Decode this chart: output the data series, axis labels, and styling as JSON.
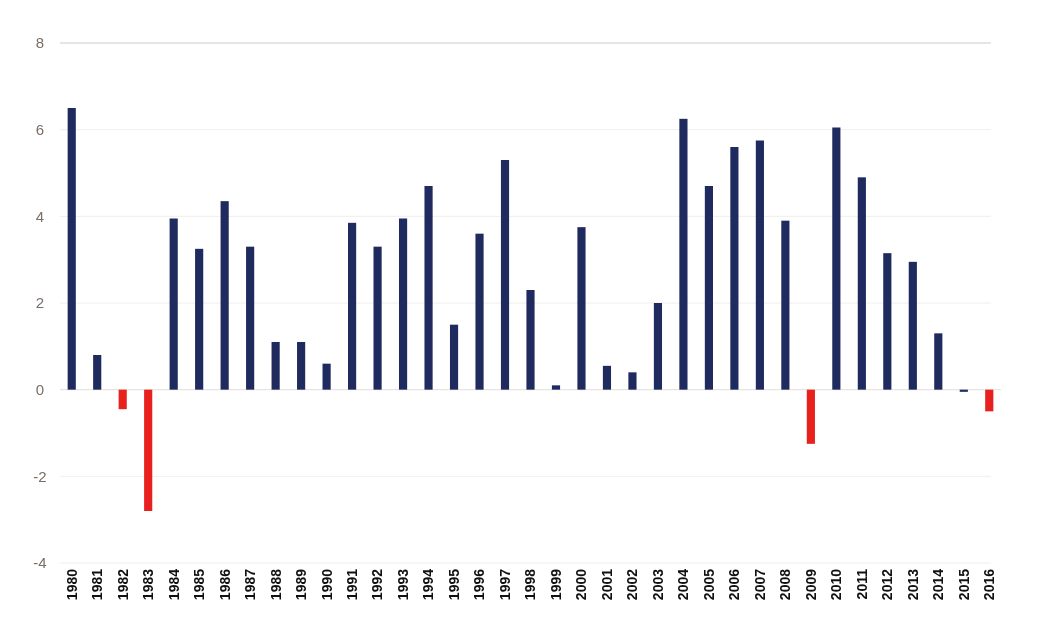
{
  "chart_data": {
    "type": "bar",
    "categories": [
      "1980",
      "1981",
      "1982",
      "1983",
      "1984",
      "1985",
      "1986",
      "1987",
      "1988",
      "1989",
      "1990",
      "1991",
      "1992",
      "1993",
      "1994",
      "1995",
      "1996",
      "1997",
      "1998",
      "1999",
      "2000",
      "2001",
      "2002",
      "2003",
      "2004",
      "2005",
      "2006",
      "2007",
      "2008",
      "2009",
      "2010",
      "2011",
      "2012",
      "2013",
      "2014",
      "2015",
      "2016"
    ],
    "values": [
      6.5,
      0.8,
      -0.45,
      -2.8,
      3.95,
      3.25,
      4.35,
      3.3,
      1.1,
      1.1,
      0.6,
      3.85,
      3.3,
      3.95,
      4.7,
      1.5,
      3.6,
      5.3,
      2.3,
      0.1,
      3.75,
      0.55,
      0.4,
      2.0,
      6.25,
      4.7,
      5.6,
      5.75,
      3.9,
      -1.25,
      6.05,
      4.9,
      3.15,
      2.95,
      1.3,
      -0.05,
      -0.5
    ],
    "colors": [
      "#1f2a5e",
      "#1f2a5e",
      "#e8201e",
      "#e8201e",
      "#1f2a5e",
      "#1f2a5e",
      "#1f2a5e",
      "#1f2a5e",
      "#1f2a5e",
      "#1f2a5e",
      "#1f2a5e",
      "#1f2a5e",
      "#1f2a5e",
      "#1f2a5e",
      "#1f2a5e",
      "#1f2a5e",
      "#1f2a5e",
      "#1f2a5e",
      "#1f2a5e",
      "#1f2a5e",
      "#1f2a5e",
      "#1f2a5e",
      "#1f2a5e",
      "#1f2a5e",
      "#1f2a5e",
      "#1f2a5e",
      "#1f2a5e",
      "#1f2a5e",
      "#1f2a5e",
      "#e8201e",
      "#1f2a5e",
      "#1f2a5e",
      "#1f2a5e",
      "#1f2a5e",
      "#1f2a5e",
      "#1f2a5e",
      "#e8201e"
    ],
    "ylim": [
      -4,
      8
    ],
    "yticks": [
      -4,
      -2,
      0,
      2,
      4,
      6,
      8
    ],
    "grid": "y"
  }
}
